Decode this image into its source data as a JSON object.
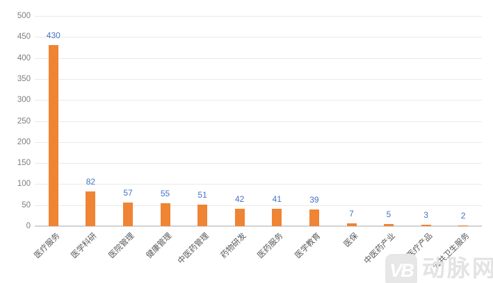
{
  "chart_data": {
    "type": "bar",
    "categories": [
      "医疗服务",
      "医学科研",
      "医院管理",
      "健康管理",
      "中医药管理",
      "药物研发",
      "医药服务",
      "医学教育",
      "医保",
      "中医药产业",
      "医疗产品",
      "公共卫生服务"
    ],
    "values": [
      430,
      82,
      57,
      55,
      51,
      42,
      41,
      39,
      7,
      5,
      3,
      2
    ],
    "title": "",
    "xlabel": "",
    "ylabel": "",
    "ylim": [
      0,
      500
    ],
    "yticks": [
      0,
      50,
      100,
      150,
      200,
      250,
      300,
      350,
      400,
      450,
      500
    ],
    "grid": true,
    "legend": false,
    "data_labels": true,
    "colors": {
      "bar": "#EE8434",
      "value_label": "#4472C4",
      "y_tick_label": "#7D7D7D",
      "category_label": "#595959",
      "gridline": "#E9E9E9",
      "axis_line": "#D2D2D2",
      "background": "#FFFFFF"
    }
  },
  "watermark": {
    "logo_text": "VB",
    "text": "动脉网",
    "color": "#E3E3E3"
  }
}
